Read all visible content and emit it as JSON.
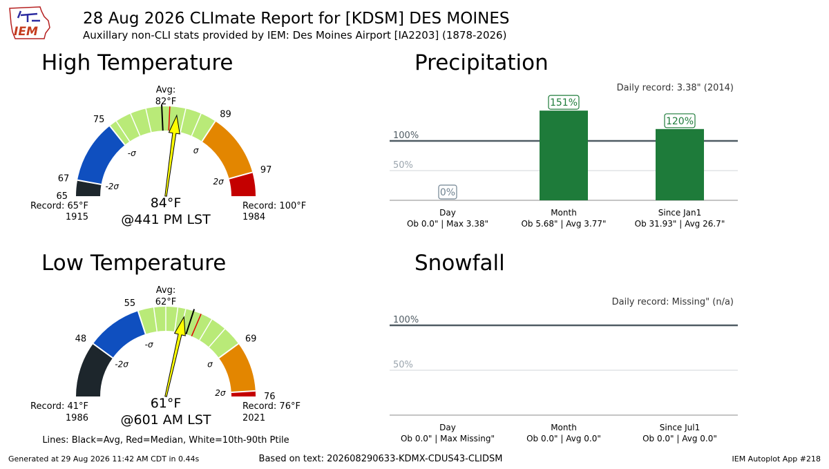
{
  "header": {
    "title": "28 Aug 2026 CLImate Report for [KDSM] DES MOINES",
    "subtitle": "Auxillary non-CLI stats provided by IEM: Des Moines Airport [IA2203] (1878-2026)",
    "logo_text": "IEM"
  },
  "footer": {
    "generated": "Generated at 29 Aug 2026 11:42 AM CDT in 0.44s",
    "based_on": "Based on text: 202608290633-KDMX-CDUS43-CLIDSM",
    "app": "IEM Autoplot App #218"
  },
  "lines_legend": "Lines: Black=Avg, Red=Median, White=10th-90th Ptile",
  "colors": {
    "dark": "#1d262c",
    "blue": "#0f4fbf",
    "green": "#b9ea78",
    "orange": "#e38600",
    "red": "#c40000",
    "bar": "#1e7b3a",
    "ref_line": "#4f5b63",
    "needle": "#ffff00"
  },
  "chart_data": [
    {
      "type": "gauge",
      "title": "High Temperature",
      "min": 65,
      "max": 100,
      "bands": [
        {
          "from": 65,
          "to": 67,
          "color": "dark"
        },
        {
          "from": 67,
          "to": 75,
          "color": "blue"
        },
        {
          "from": 75,
          "to": 89,
          "color": "green"
        },
        {
          "from": 89,
          "to": 97,
          "color": "orange"
        },
        {
          "from": 97,
          "to": 100,
          "color": "red"
        }
      ],
      "tick_labels": [
        {
          "value": 65,
          "text": "65"
        },
        {
          "value": 67,
          "text": "67"
        },
        {
          "value": 75,
          "text": "75"
        },
        {
          "value": 89,
          "text": "89"
        },
        {
          "value": 97,
          "text": "97"
        }
      ],
      "sigma_labels": [
        {
          "value": 67,
          "text": "-2σ",
          "side": "in"
        },
        {
          "value": 75,
          "text": "-σ",
          "side": "in"
        },
        {
          "value": 89,
          "text": "σ",
          "side": "in"
        },
        {
          "value": 97,
          "text": "2σ",
          "side": "in"
        }
      ],
      "avg": 82,
      "median": 83,
      "percentile_lines": [
        76,
        78,
        80,
        85,
        87
      ],
      "observed": 84,
      "avg_label": "Avg:",
      "avg_value_label": "82°F",
      "obs_label": "84°F",
      "time_label": "@441 PM LST",
      "record_low_label": "Record: 65°F",
      "record_low_year": "1915",
      "record_high_label": "Record: 100°F",
      "record_high_year": "1984"
    },
    {
      "type": "bar",
      "title": "Precipitation",
      "daily_record": "Daily record: 3.38\" (2014)",
      "ref_lines": [
        {
          "value": 100,
          "text": "100%"
        },
        {
          "value": 50,
          "text": "50%"
        }
      ],
      "ylim": [
        0,
        100
      ],
      "categories": [
        "Day",
        "Month",
        "Since Jan1"
      ],
      "sublabels": [
        "Ob 0.0\" | Max 3.38\"",
        "Ob 5.68\" | Avg 3.77\"",
        "Ob 31.93\" | Avg 26.7\""
      ],
      "values": [
        0,
        151,
        120
      ],
      "value_labels": [
        "0%",
        "151%",
        "120%"
      ]
    },
    {
      "type": "gauge",
      "title": "Low Temperature",
      "min": 41,
      "max": 76,
      "bands": [
        {
          "from": 41,
          "to": 48,
          "color": "dark"
        },
        {
          "from": 48,
          "to": 55,
          "color": "blue"
        },
        {
          "from": 55,
          "to": 69,
          "color": "green"
        },
        {
          "from": 69,
          "to": 75.3,
          "color": "orange"
        },
        {
          "from": 75.3,
          "to": 76,
          "color": "red"
        }
      ],
      "tick_labels": [
        {
          "value": 48,
          "text": "48"
        },
        {
          "value": 55,
          "text": "55"
        },
        {
          "value": 69,
          "text": "69"
        },
        {
          "value": 76,
          "text": "76"
        }
      ],
      "sigma_labels": [
        {
          "value": 48,
          "text": "-2σ",
          "side": "in"
        },
        {
          "value": 55,
          "text": "-σ",
          "side": "in"
        },
        {
          "value": 69,
          "text": "σ",
          "side": "in"
        },
        {
          "value": 75.3,
          "text": "2σ",
          "side": "in"
        }
      ],
      "avg": 62,
      "median": 63,
      "percentile_lines": [
        57,
        58.5,
        60,
        61,
        64.5,
        66.5
      ],
      "observed": 61,
      "avg_label": "Avg:",
      "avg_value_label": "62°F",
      "obs_label": "61°F",
      "time_label": "@601 AM LST",
      "record_low_label": "Record: 41°F",
      "record_low_year": "1986",
      "record_high_label": "Record: 76°F",
      "record_high_year": "2021"
    },
    {
      "type": "bar",
      "title": "Snowfall",
      "daily_record": "Daily record: Missing\" (n/a)",
      "ref_lines": [
        {
          "value": 100,
          "text": "100%"
        },
        {
          "value": 50,
          "text": "50%"
        }
      ],
      "ylim": [
        0,
        100
      ],
      "categories": [
        "Day",
        "Month",
        "Since Jul1"
      ],
      "sublabels": [
        "Ob 0.0\" | Max Missing\"",
        "Ob 0.0\" | Avg 0.0\"",
        "Ob 0.0\" | Avg 0.0\""
      ],
      "values": [
        0,
        0,
        0
      ],
      "value_labels": [
        "",
        "",
        ""
      ]
    }
  ]
}
